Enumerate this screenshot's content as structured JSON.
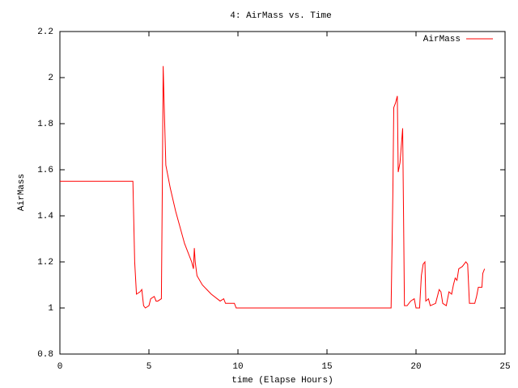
{
  "chart_data": {
    "type": "line",
    "title": "4: AirMass vs. Time",
    "x_label": "time (Elapse Hours)",
    "y_label": "AirMass",
    "x": [
      0,
      4.1,
      4.2,
      4.3,
      4.5,
      4.6,
      4.7,
      4.8,
      5.0,
      5.1,
      5.3,
      5.4,
      5.5,
      5.7,
      5.75,
      5.8,
      5.85,
      5.95,
      6.2,
      6.5,
      7.0,
      7.4,
      7.5,
      7.55,
      7.6,
      7.7,
      8.0,
      8.5,
      9.0,
      9.2,
      9.3,
      9.8,
      9.9,
      18.6,
      18.7,
      18.75,
      18.85,
      18.95,
      19.0,
      19.1,
      19.25,
      19.3,
      19.35,
      19.5,
      19.7,
      19.9,
      20.0,
      20.2,
      20.3,
      20.4,
      20.5,
      20.55,
      20.7,
      20.8,
      21.1,
      21.3,
      21.4,
      21.5,
      21.7,
      21.85,
      22.0,
      22.1,
      22.2,
      22.3,
      22.4,
      22.6,
      22.8,
      22.9,
      23.0,
      23.3,
      23.4,
      23.5,
      23.7,
      23.75,
      23.85
    ],
    "series": [
      {
        "name": "AirMass",
        "color": "#ff0000",
        "values": [
          1.55,
          1.55,
          1.2,
          1.06,
          1.07,
          1.08,
          1.01,
          1.0,
          1.01,
          1.04,
          1.05,
          1.03,
          1.03,
          1.04,
          1.5,
          2.05,
          1.9,
          1.62,
          1.52,
          1.42,
          1.28,
          1.2,
          1.17,
          1.26,
          1.2,
          1.14,
          1.1,
          1.06,
          1.03,
          1.04,
          1.02,
          1.02,
          1.0,
          1.0,
          1.5,
          1.87,
          1.89,
          1.92,
          1.59,
          1.63,
          1.78,
          1.4,
          1.01,
          1.01,
          1.03,
          1.04,
          1.0,
          1.0,
          1.14,
          1.19,
          1.2,
          1.03,
          1.04,
          1.01,
          1.02,
          1.08,
          1.07,
          1.02,
          1.01,
          1.07,
          1.06,
          1.1,
          1.13,
          1.12,
          1.17,
          1.18,
          1.2,
          1.19,
          1.02,
          1.02,
          1.05,
          1.09,
          1.09,
          1.15,
          1.17
        ]
      }
    ],
    "xlim": [
      0,
      25
    ],
    "xticks": [
      0,
      5,
      10,
      15,
      20,
      25
    ],
    "ylim": [
      0.8,
      2.2
    ],
    "yticks": [
      0.8,
      1,
      1.2,
      1.4,
      1.6,
      1.8,
      2,
      2.2
    ],
    "grid": false,
    "legend": "top-right"
  }
}
